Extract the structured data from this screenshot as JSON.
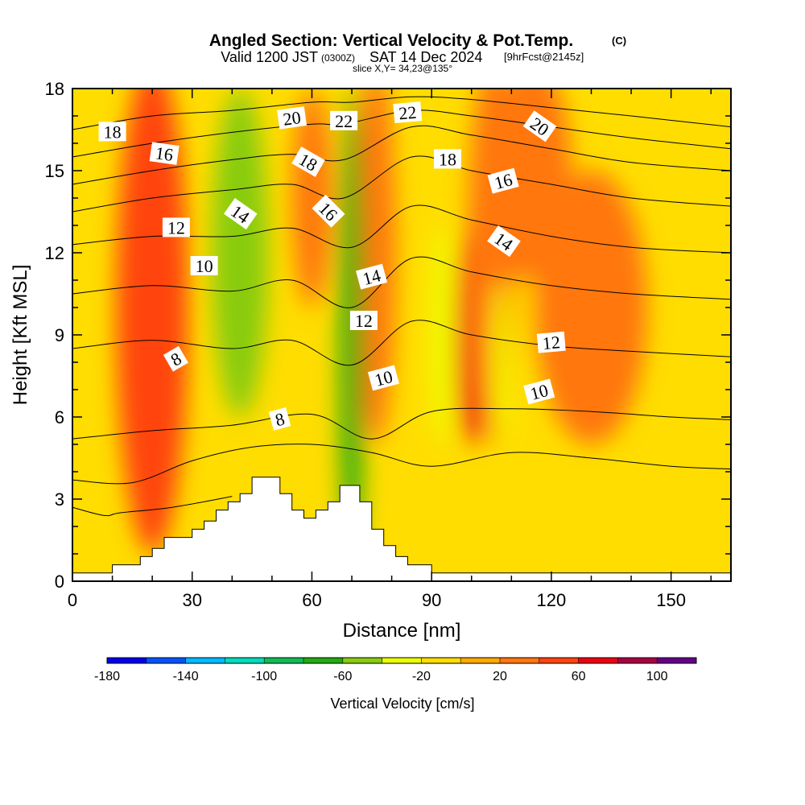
{
  "title": {
    "main": "Angled Section: Vertical Velocity & Pot.Temp.",
    "copyright": "(C)",
    "valid_prefix": "Valid 1200 JST",
    "utc": "(0300Z)",
    "valid_date": "SAT 14 Dec 2024",
    "forecast": "[9hrFcst@2145z]",
    "slice": "slice X,Y= 34,23@135°"
  },
  "colorbar": {
    "title": "Vertical Velocity [cm/s]",
    "labels": [
      "-180",
      "-140",
      "-100",
      "-60",
      "-20",
      "20",
      "60",
      "100"
    ],
    "colors": [
      "#0000ee",
      "#0055ff",
      "#00bbff",
      "#00ddbb",
      "#11bb55",
      "#22aa11",
      "#88cc11",
      "#eeff00",
      "#ffdd00",
      "#ffaa00",
      "#ff7711",
      "#ff4411",
      "#ee0011",
      "#aa0044",
      "#660088"
    ]
  },
  "chart_data": {
    "type": "heatmap",
    "title": "Angled Section: Vertical Velocity & Pot.Temp.",
    "xlabel": "Distance [nm]",
    "ylabel": "Height [Kft MSL]",
    "xlim": [
      0,
      165
    ],
    "ylim": [
      0,
      18
    ],
    "x_ticks": [
      0,
      30,
      60,
      90,
      120,
      150
    ],
    "y_ticks": [
      0,
      3,
      6,
      9,
      12,
      15,
      18
    ],
    "x_tick_labels": [
      "0",
      "30",
      "60",
      "90",
      "120",
      "150"
    ],
    "y_tick_labels": [
      "0",
      "3",
      "6",
      "9",
      "12",
      "15",
      "18"
    ],
    "background_color": "#ffdd00",
    "velocity_features": [
      {
        "name": "updraft",
        "x": 20,
        "y": 10,
        "x_halfwidth": 9,
        "y_halfwidth": 9,
        "value": 40
      },
      {
        "name": "updraft",
        "x": 60,
        "y": 14,
        "x_halfwidth": 5,
        "y_halfwidth": 4,
        "value": 30
      },
      {
        "name": "updraft",
        "x": 76,
        "y": 12,
        "x_halfwidth": 5,
        "y_halfwidth": 7,
        "value": 30
      },
      {
        "name": "updraft",
        "x": 100,
        "y": 9,
        "x_halfwidth": 4,
        "y_halfwidth": 4,
        "value": 70
      },
      {
        "name": "updraft",
        "x": 105,
        "y": 12,
        "x_halfwidth": 6,
        "y_halfwidth": 7,
        "value": 35
      },
      {
        "name": "updraft",
        "x": 115,
        "y": 15,
        "x_halfwidth": 10,
        "y_halfwidth": 4,
        "value": 20
      },
      {
        "name": "updraft",
        "x": 130,
        "y": 10,
        "x_halfwidth": 14,
        "y_halfwidth": 5,
        "value": 20
      },
      {
        "name": "downdraft",
        "x": 42,
        "y": 12,
        "x_halfwidth": 7,
        "y_halfwidth": 6,
        "value": -50
      },
      {
        "name": "downdraft",
        "x": 70,
        "y": 9,
        "x_halfwidth": 3,
        "y_halfwidth": 9,
        "value": -70
      },
      {
        "name": "downdraft",
        "x": 93,
        "y": 9,
        "x_halfwidth": 3,
        "y_halfwidth": 4,
        "value": -40
      },
      {
        "name": "downdraft",
        "x": 107,
        "y": 8,
        "x_halfwidth": 2,
        "y_halfwidth": 3,
        "value": -40
      }
    ],
    "terrain": {
      "x": [
        0,
        10,
        10,
        17,
        17,
        20,
        20,
        23,
        23,
        30,
        30,
        33,
        33,
        36,
        36,
        39,
        39,
        42,
        42,
        45,
        45,
        52,
        52,
        55,
        55,
        58,
        58,
        61,
        61,
        64,
        64,
        67,
        67,
        72,
        72,
        75,
        75,
        78,
        78,
        81,
        81,
        84,
        84,
        90,
        90,
        165
      ],
      "y": [
        0.3,
        0.3,
        0.6,
        0.6,
        0.9,
        0.9,
        1.2,
        1.2,
        1.6,
        1.6,
        1.9,
        1.9,
        2.2,
        2.2,
        2.6,
        2.6,
        2.9,
        2.9,
        3.2,
        3.2,
        3.8,
        3.8,
        3.2,
        3.2,
        2.6,
        2.6,
        2.3,
        2.3,
        2.6,
        2.6,
        2.9,
        2.9,
        3.5,
        3.5,
        2.9,
        2.9,
        1.9,
        1.9,
        1.3,
        1.3,
        0.9,
        0.9,
        0.6,
        0.6,
        0.3,
        0.3
      ]
    },
    "theta_contour_lines": [
      {
        "x": [
          0,
          20,
          40,
          60,
          70,
          85,
          100,
          120,
          140,
          165
        ],
        "y": [
          16.5,
          17.0,
          17.2,
          17.5,
          17.5,
          17.7,
          17.6,
          17.3,
          17.0,
          16.6
        ]
      },
      {
        "x": [
          0,
          20,
          40,
          60,
          68,
          85,
          100,
          120,
          140,
          165
        ],
        "y": [
          15.5,
          16.0,
          16.4,
          16.7,
          16.7,
          17.2,
          17.0,
          16.6,
          16.2,
          15.8
        ]
      },
      {
        "x": [
          0,
          20,
          40,
          55,
          68,
          85,
          100,
          120,
          140,
          165
        ],
        "y": [
          14.5,
          15.0,
          15.4,
          15.6,
          15.4,
          16.6,
          16.3,
          15.8,
          15.3,
          15.0
        ]
      },
      {
        "x": [
          0,
          20,
          40,
          55,
          68,
          85,
          100,
          120,
          140,
          165
        ],
        "y": [
          13.5,
          14.0,
          14.3,
          14.5,
          14.0,
          15.5,
          15.0,
          14.5,
          14.0,
          13.7
        ]
      },
      {
        "x": [
          0,
          20,
          40,
          55,
          70,
          85,
          100,
          120,
          140,
          165
        ],
        "y": [
          12.3,
          12.6,
          12.6,
          12.9,
          12.2,
          13.7,
          13.2,
          12.6,
          12.2,
          12.0
        ]
      },
      {
        "x": [
          0,
          20,
          40,
          55,
          70,
          85,
          100,
          120,
          140,
          165
        ],
        "y": [
          10.5,
          10.8,
          10.6,
          11.0,
          10.0,
          11.8,
          11.3,
          10.8,
          10.5,
          10.3
        ]
      },
      {
        "x": [
          0,
          20,
          40,
          55,
          70,
          85,
          100,
          120,
          140,
          165
        ],
        "y": [
          8.5,
          8.8,
          8.5,
          8.8,
          7.9,
          9.5,
          9.0,
          8.6,
          8.4,
          8.2
        ]
      },
      {
        "x": [
          0,
          20,
          40,
          60,
          75,
          90,
          110,
          130,
          150,
          165
        ],
        "y": [
          5.2,
          5.5,
          5.7,
          6.1,
          5.2,
          6.2,
          6.3,
          6.2,
          6.0,
          5.9
        ]
      },
      {
        "x": [
          0,
          15,
          30,
          45,
          60,
          75,
          90,
          110,
          130,
          150,
          165
        ],
        "y": [
          3.7,
          3.6,
          4.4,
          4.9,
          5.0,
          4.7,
          4.2,
          4.7,
          4.5,
          4.2,
          4.1
        ]
      },
      {
        "x": [
          0,
          8,
          12,
          25,
          40
        ],
        "y": [
          2.7,
          2.4,
          2.5,
          2.7,
          3.1
        ]
      }
    ],
    "theta_contour_labels": [
      {
        "text": "18",
        "x": 10,
        "y": 16.4,
        "angle": 0
      },
      {
        "text": "16",
        "x": 23,
        "y": 15.6,
        "angle": 8
      },
      {
        "text": "12",
        "x": 26,
        "y": 12.9,
        "angle": 0
      },
      {
        "text": "10",
        "x": 33,
        "y": 11.5,
        "angle": 0
      },
      {
        "text": "8",
        "x": 26,
        "y": 8.1,
        "angle": -30
      },
      {
        "text": "14",
        "x": 42,
        "y": 13.4,
        "angle": 35
      },
      {
        "text": "20",
        "x": 55,
        "y": 16.9,
        "angle": -8
      },
      {
        "text": "22",
        "x": 68,
        "y": 16.8,
        "angle": 0
      },
      {
        "text": "18",
        "x": 59,
        "y": 15.3,
        "angle": 30
      },
      {
        "text": "16",
        "x": 64,
        "y": 13.5,
        "angle": 45
      },
      {
        "text": "14",
        "x": 75,
        "y": 11.1,
        "angle": -15
      },
      {
        "text": "12",
        "x": 73,
        "y": 9.5,
        "angle": 0
      },
      {
        "text": "10",
        "x": 78,
        "y": 7.4,
        "angle": -15
      },
      {
        "text": "8",
        "x": 52,
        "y": 5.9,
        "angle": -15
      },
      {
        "text": "22",
        "x": 84,
        "y": 17.1,
        "angle": -5
      },
      {
        "text": "18",
        "x": 94,
        "y": 15.4,
        "angle": 0
      },
      {
        "text": "16",
        "x": 108,
        "y": 14.6,
        "angle": -15
      },
      {
        "text": "14",
        "x": 108,
        "y": 12.4,
        "angle": 35
      },
      {
        "text": "20",
        "x": 117,
        "y": 16.6,
        "angle": 35
      },
      {
        "text": "12",
        "x": 120,
        "y": 8.7,
        "angle": -5
      },
      {
        "text": "10",
        "x": 117,
        "y": 6.9,
        "angle": -15
      }
    ]
  }
}
